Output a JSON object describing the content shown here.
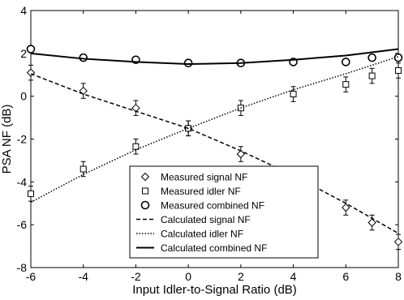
{
  "chart_data": {
    "type": "line",
    "xlabel": "Input Idler-to-Signal Ratio (dB)",
    "ylabel": "PSA NF (dB)",
    "xlim": [
      -6,
      8
    ],
    "ylim": [
      -8,
      4
    ],
    "x_ticks": [
      -6,
      -4,
      -2,
      0,
      2,
      4,
      6,
      8
    ],
    "y_ticks": [
      -8,
      -6,
      -4,
      -2,
      0,
      2,
      4
    ],
    "x_tick_labels": [
      "-6",
      "-4",
      "-2",
      "0",
      "2",
      "4",
      "6",
      "8"
    ],
    "y_tick_labels": [
      "-8",
      "-6",
      "-4",
      "-2",
      "0",
      "2",
      "4"
    ],
    "grid": false,
    "legend_position": "bottom-center",
    "series": [
      {
        "name": "Measured signal NF",
        "kind": "markers",
        "marker": "diamond",
        "x": [
          -6,
          -4,
          -2,
          0,
          2,
          4,
          6,
          7,
          8
        ],
        "y": [
          1.1,
          0.25,
          -0.55,
          -1.5,
          -2.7,
          -3.85,
          -5.2,
          -5.9,
          -6.8
        ],
        "err": [
          0.35,
          0.35,
          0.35,
          0.35,
          0.35,
          0.35,
          0.35,
          0.35,
          0.35
        ]
      },
      {
        "name": "Measured idler NF",
        "kind": "markers",
        "marker": "square",
        "x": [
          -6,
          -4,
          -2,
          0,
          2,
          4,
          6,
          7,
          8
        ],
        "y": [
          -4.55,
          -3.4,
          -2.35,
          -1.5,
          -0.55,
          0.1,
          0.55,
          0.95,
          1.2
        ],
        "err": [
          0.35,
          0.35,
          0.35,
          0.35,
          0.35,
          0.35,
          0.35,
          0.35,
          0.35
        ]
      },
      {
        "name": "Measured combined NF",
        "kind": "markers",
        "marker": "circle",
        "x": [
          -6,
          -4,
          -2,
          0,
          2,
          4,
          6,
          7,
          8
        ],
        "y": [
          2.2,
          1.8,
          1.7,
          1.55,
          1.55,
          1.6,
          1.6,
          1.8,
          1.8
        ]
      },
      {
        "name": "Calculated signal NF",
        "kind": "line",
        "dash": "dashed",
        "x": [
          -6,
          -4,
          -2,
          0,
          2,
          4,
          6,
          8
        ],
        "y": [
          1.05,
          0.1,
          -0.7,
          -1.5,
          -2.55,
          -3.7,
          -5.0,
          -6.4
        ]
      },
      {
        "name": "Calculated idler NF",
        "kind": "line",
        "dash": "dotted",
        "x": [
          -6,
          -4,
          -2,
          0,
          2,
          4,
          6,
          8
        ],
        "y": [
          -4.95,
          -3.65,
          -2.5,
          -1.5,
          -0.55,
          0.3,
          1.05,
          1.85
        ]
      },
      {
        "name": "Calculated combined NF",
        "kind": "line",
        "dash": "solid",
        "x": [
          -6,
          -4,
          -2,
          0,
          2,
          4,
          6,
          8
        ],
        "y": [
          2.0,
          1.75,
          1.6,
          1.5,
          1.55,
          1.7,
          1.9,
          2.2
        ]
      }
    ]
  }
}
